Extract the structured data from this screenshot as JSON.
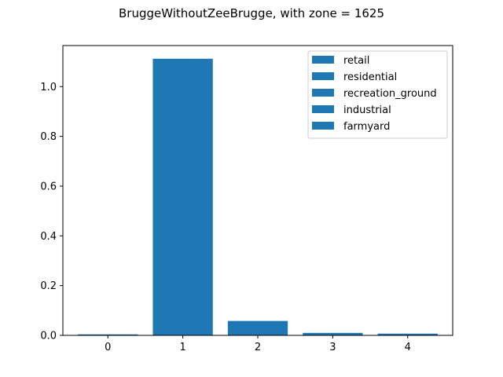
{
  "chart_data": {
    "type": "bar",
    "title": "BruggeWithoutZeeBrugge, with zone = 1625",
    "xlabel": "",
    "ylabel": "",
    "categories": [
      "0",
      "1",
      "2",
      "3",
      "4"
    ],
    "series": [
      {
        "name": "retail",
        "values": [
          0.004,
          0,
          0,
          0,
          0
        ]
      },
      {
        "name": "residential",
        "values": [
          0,
          1.112,
          0,
          0,
          0
        ]
      },
      {
        "name": "recreation_ground",
        "values": [
          0,
          0,
          0.058,
          0,
          0
        ]
      },
      {
        "name": "industrial",
        "values": [
          0,
          0,
          0,
          0.01,
          0
        ]
      },
      {
        "name": "farmyard",
        "values": [
          0,
          0,
          0,
          0,
          0.007
        ]
      }
    ],
    "ylim": [
      0,
      1.165
    ],
    "yticks": [
      "0.0",
      "0.2",
      "0.4",
      "0.6",
      "0.8",
      "1.0"
    ],
    "bar_color": "#1f77b4",
    "grid": false,
    "legend_position": "top-right"
  }
}
